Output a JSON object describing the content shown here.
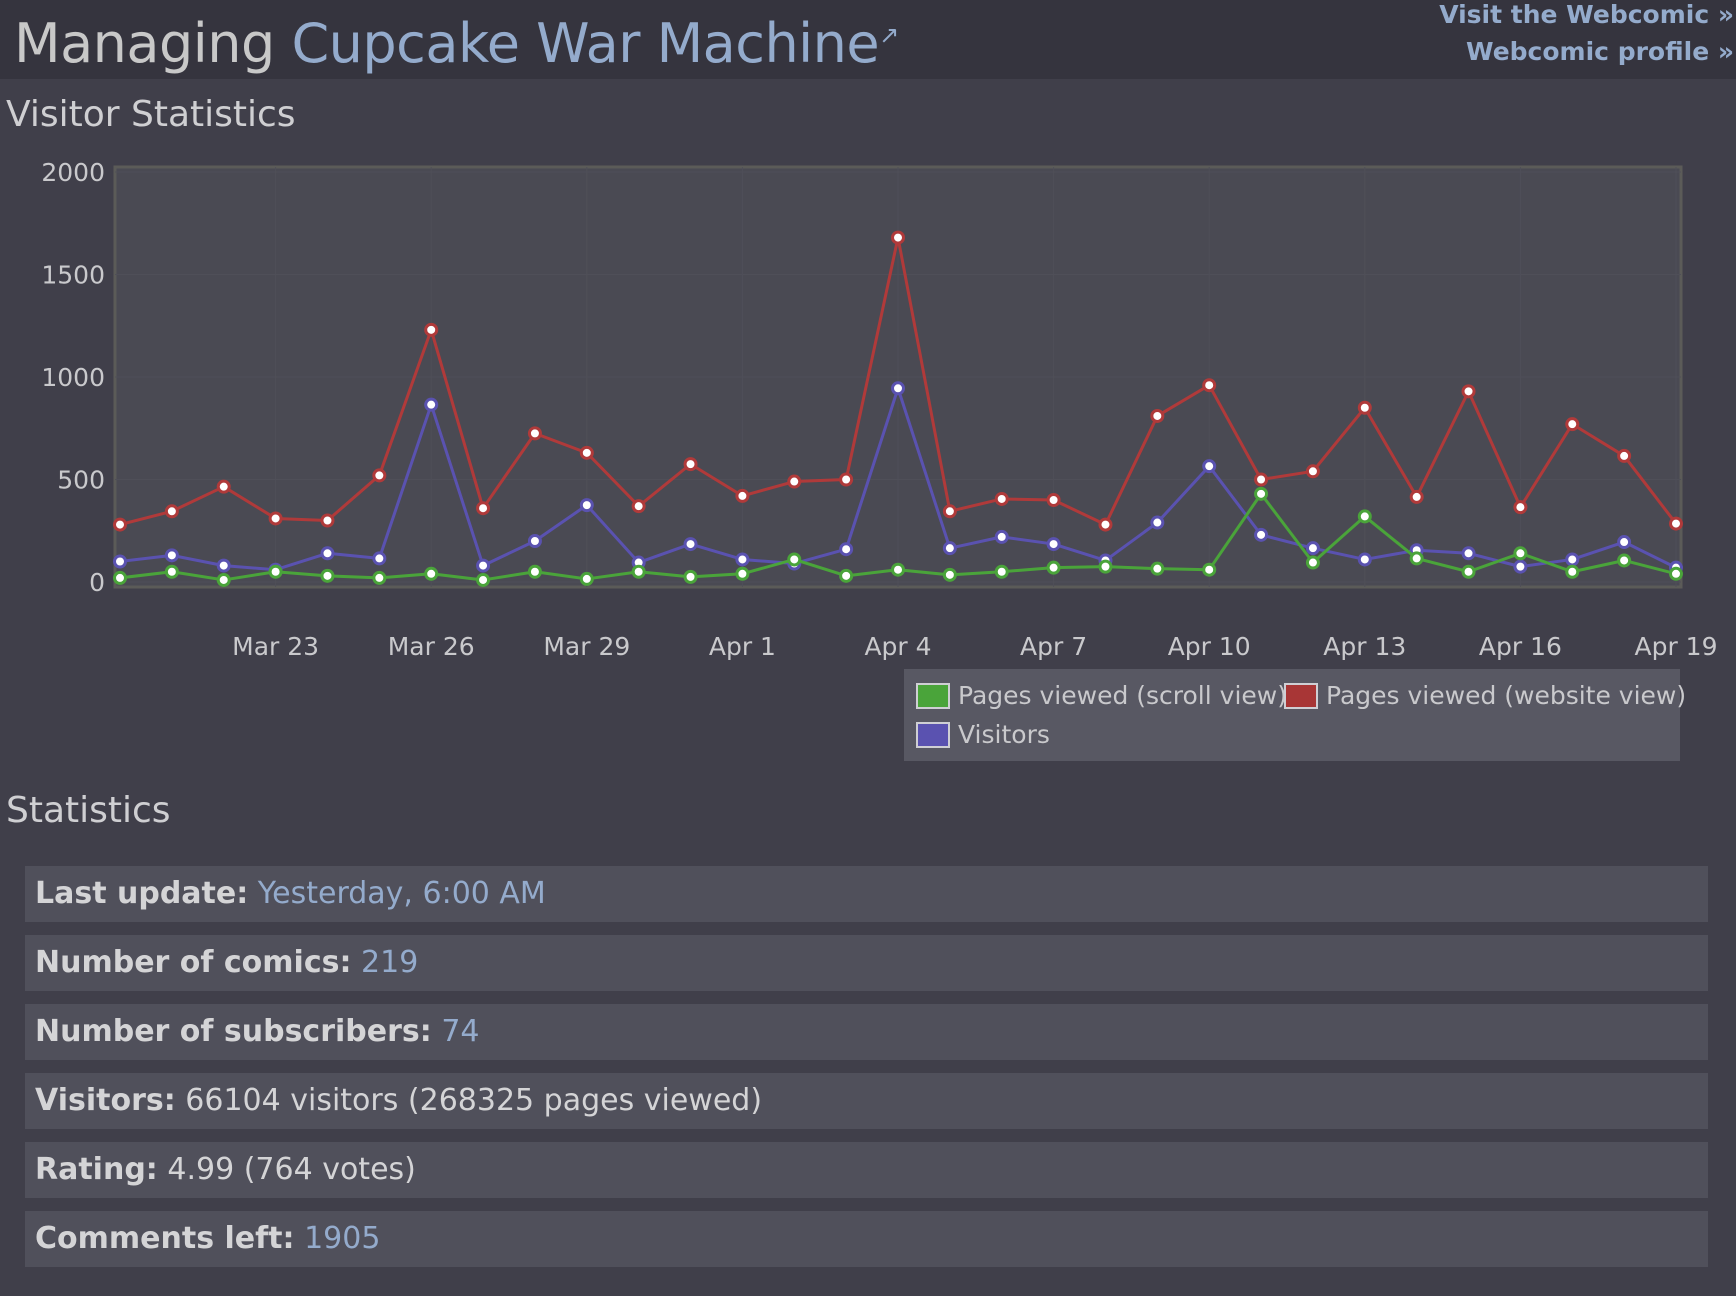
{
  "header": {
    "title_prefix": "Managing",
    "comic_name": "Cupcake War Machine",
    "external_icon": "external-link-icon",
    "links": [
      "Visit the Webcomic »",
      "Webcomic profile »"
    ]
  },
  "visitor_section": {
    "heading": "Visitor Statistics"
  },
  "chart_data": {
    "type": "line",
    "title": "",
    "xlabel": "",
    "ylabel": "",
    "ylim": [
      0,
      2000
    ],
    "yticks": [
      "0",
      "500",
      "1000",
      "1500",
      "2000"
    ],
    "xtick_labels": [
      "Mar 23",
      "Mar 26",
      "Mar 29",
      "Apr 1",
      "Apr 4",
      "Apr 7",
      "Apr 10",
      "Apr 13",
      "Apr 16",
      "Apr 19"
    ],
    "x": [
      "Mar 20",
      "Mar 21",
      "Mar 22",
      "Mar 23",
      "Mar 24",
      "Mar 25",
      "Mar 26",
      "Mar 27",
      "Mar 28",
      "Mar 29",
      "Mar 30",
      "Mar 31",
      "Apr 1",
      "Apr 2",
      "Apr 3",
      "Apr 4",
      "Apr 5",
      "Apr 6",
      "Apr 7",
      "Apr 8",
      "Apr 9",
      "Apr 10",
      "Apr 11",
      "Apr 12",
      "Apr 13",
      "Apr 14",
      "Apr 15",
      "Apr 16",
      "Apr 17",
      "Apr 18",
      "Apr 19"
    ],
    "grid": true,
    "legend_position": "bottom-right",
    "series": [
      {
        "name": "Pages viewed (scroll view)",
        "color": "#4aa43a",
        "values": [
          20,
          50,
          10,
          50,
          30,
          20,
          40,
          10,
          50,
          15,
          50,
          25,
          40,
          110,
          30,
          60,
          35,
          50,
          70,
          75,
          65,
          60,
          430,
          95,
          320,
          115,
          50,
          140,
          50,
          105,
          40
        ]
      },
      {
        "name": "Pages viewed (website view)",
        "color": "#b03a3a",
        "values": [
          280,
          345,
          465,
          310,
          300,
          520,
          1230,
          360,
          725,
          630,
          370,
          575,
          420,
          490,
          500,
          1680,
          345,
          405,
          400,
          280,
          810,
          960,
          500,
          540,
          850,
          415,
          930,
          365,
          770,
          615,
          285
        ]
      },
      {
        "name": "Visitors",
        "color": "#5a52b0",
        "values": [
          100,
          130,
          80,
          60,
          140,
          115,
          865,
          80,
          200,
          375,
          95,
          185,
          110,
          90,
          160,
          945,
          165,
          220,
          185,
          105,
          290,
          565,
          230,
          165,
          110,
          155,
          140,
          75,
          110,
          195,
          70
        ]
      }
    ]
  },
  "statistics": {
    "heading": "Statistics",
    "rows": [
      {
        "label": "Last update:",
        "value": "Yesterday, 6:00 AM",
        "accent": true
      },
      {
        "label": "Number of comics:",
        "value": "219",
        "accent": true
      },
      {
        "label": "Number of subscribers:",
        "value": "74",
        "accent": true
      },
      {
        "label": "Visitors:",
        "value": "66104 visitors (268325 pages viewed)",
        "accent": false
      },
      {
        "label": "Rating:",
        "value": "4.99 (764 votes)",
        "accent": false
      },
      {
        "label": "Comments left:",
        "value": "1905",
        "accent": true
      }
    ]
  }
}
